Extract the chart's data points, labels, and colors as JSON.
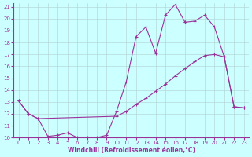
{
  "xlabel": "Windchill (Refroidissement éolien,°C)",
  "bg_color": "#ccffff",
  "grid_color": "#b0d0d0",
  "line_color": "#993399",
  "xmin": 0,
  "xmax": 23,
  "ymin": 10,
  "ymax": 21,
  "line1_x": [
    0,
    1,
    2,
    3,
    4,
    5,
    6,
    7,
    8,
    9,
    10,
    11,
    12,
    13,
    14,
    15,
    16,
    17
  ],
  "line1_y": [
    13.1,
    12.0,
    11.6,
    10.1,
    10.2,
    10.4,
    10.0,
    10.0,
    10.0,
    10.2,
    12.2,
    14.7,
    18.5,
    19.3,
    17.1,
    20.3,
    21.2,
    19.7
  ],
  "line2_x": [
    17,
    18,
    19,
    20,
    21,
    22,
    23
  ],
  "line2_y": [
    19.7,
    19.8,
    20.3,
    19.3,
    16.8,
    12.6,
    12.5
  ],
  "line3_x": [
    0,
    1,
    2,
    10,
    11,
    12,
    13,
    14,
    15,
    16,
    17,
    18,
    19,
    20,
    21,
    22,
    23
  ],
  "line3_y": [
    13.1,
    12.0,
    11.6,
    11.8,
    12.2,
    12.8,
    13.3,
    13.9,
    14.5,
    15.2,
    15.8,
    16.4,
    16.9,
    17.0,
    16.8,
    12.6,
    12.5
  ],
  "yticks": [
    10,
    11,
    12,
    13,
    14,
    15,
    16,
    17,
    18,
    19,
    20,
    21
  ],
  "xticks": [
    0,
    1,
    2,
    3,
    4,
    5,
    6,
    7,
    8,
    9,
    10,
    11,
    12,
    13,
    14,
    15,
    16,
    17,
    18,
    19,
    20,
    21,
    22,
    23
  ]
}
